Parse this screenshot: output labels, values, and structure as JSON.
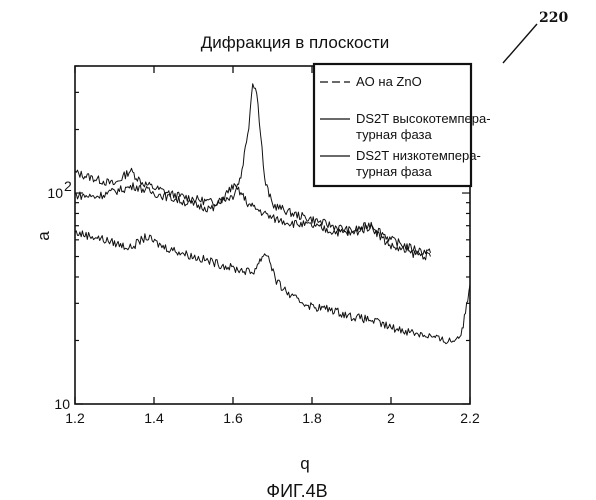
{
  "chart_data": {
    "type": "line",
    "title": "Дифракция в плоскости",
    "xlabel": "q",
    "ylabel": "a",
    "xlim": [
      1.2,
      2.2
    ],
    "ylim": [
      10,
      400
    ],
    "y_scale": "log",
    "x_ticks": [
      {
        "v": 1.2,
        "label": "1.2"
      },
      {
        "v": 1.4,
        "label": "1.4"
      },
      {
        "v": 1.6,
        "label": "1.6"
      },
      {
        "v": 1.8,
        "label": "1.8"
      },
      {
        "v": 2.0,
        "label": "2"
      },
      {
        "v": 2.2,
        "label": "2.2"
      }
    ],
    "y_ticks": [
      {
        "v": 10,
        "label": "10"
      },
      {
        "v": 100,
        "label": "10",
        "exp": "2"
      }
    ],
    "grid": false,
    "legend_position": "top-right",
    "series": [
      {
        "name": "AO на ZnO",
        "color": "#111111",
        "x": [
          1.2,
          1.25,
          1.3,
          1.34,
          1.37,
          1.4,
          1.45,
          1.5,
          1.55,
          1.6,
          1.62,
          1.64,
          1.65,
          1.66,
          1.67,
          1.68,
          1.7,
          1.75,
          1.8,
          1.85,
          1.9,
          1.95,
          2.0,
          2.05,
          2.1
        ],
        "y": [
          125,
          117,
          110,
          128,
          112,
          106,
          98,
          94,
          90,
          97,
          120,
          210,
          340,
          300,
          195,
          115,
          88,
          80,
          75,
          70,
          66,
          71,
          60,
          55,
          52
        ]
      },
      {
        "name": "DS2T высокотемпературная фаза",
        "color": "#111111",
        "x": [
          1.2,
          1.25,
          1.3,
          1.35,
          1.4,
          1.45,
          1.5,
          1.55,
          1.6,
          1.62,
          1.64,
          1.66,
          1.7,
          1.75,
          1.8,
          1.85,
          1.9,
          1.95,
          1.97,
          2.0,
          2.05,
          2.1
        ],
        "y": [
          98,
          96,
          102,
          108,
          100,
          94,
          88,
          84,
          108,
          100,
          88,
          84,
          76,
          72,
          70,
          66,
          64,
          70,
          63,
          56,
          52,
          50
        ]
      },
      {
        "name": "DS2T низкотемпературная фаза",
        "color": "#111111",
        "x": [
          1.2,
          1.25,
          1.3,
          1.34,
          1.38,
          1.42,
          1.5,
          1.55,
          1.6,
          1.65,
          1.68,
          1.69,
          1.71,
          1.75,
          1.8,
          1.85,
          1.9,
          1.95,
          2.0,
          2.05,
          2.1,
          2.13,
          2.16,
          2.18,
          2.2
        ],
        "y": [
          65,
          62,
          58,
          55,
          62,
          56,
          50,
          47,
          44,
          42,
          52,
          50,
          38,
          32,
          29,
          28,
          26,
          25,
          23,
          22,
          21,
          20,
          20,
          22,
          37
        ]
      }
    ]
  },
  "reference_label": "220",
  "figure_caption": "ФИГ.4В",
  "legend_entries": [
    {
      "lines": [
        "AO на ZnO"
      ],
      "dashed": true
    },
    {
      "lines": [
        "DS2T высокотемпера-",
        "турная фаза"
      ],
      "dashed": false
    },
    {
      "lines": [
        "DS2T низкотемпера-",
        "турная фаза"
      ],
      "dashed": false
    }
  ]
}
